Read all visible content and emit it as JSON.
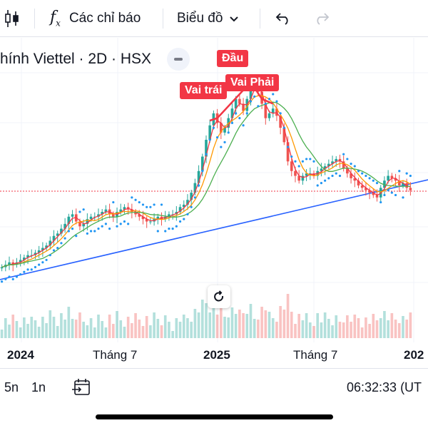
{
  "toolbar": {
    "indicators_label": "Các chỉ báo",
    "chart_type_label": "Biểu đồ",
    "icons": [
      "candles-icon",
      "function-icon",
      "chevron-down-icon",
      "undo-icon",
      "redo-icon"
    ]
  },
  "symbol": {
    "text": "hính Viettel · 2D · HSX"
  },
  "pattern": {
    "head": "Đầu",
    "left_shoulder": "Vai trái",
    "right_shoulder": "Vai Phải",
    "color": "#f23645"
  },
  "time_axis": {
    "labels": [
      "2024",
      "Tháng 7",
      "2025",
      "Tháng 7",
      "202"
    ]
  },
  "bottom_bar": {
    "range_5y": "5n",
    "range_1y": "1n",
    "clock": "06:32:33 (UT"
  },
  "colors": {
    "up": "#26a69a",
    "down": "#ef5350",
    "trendline": "#2962ff",
    "parabolic_sar": "#2196f3",
    "price_line": "#f23645"
  },
  "chart_data": {
    "type": "candlestick",
    "x_range": [
      "2023-12",
      "2026-01"
    ],
    "y_scale_visible": false,
    "close": [
      22,
      23,
      24,
      23,
      24,
      25,
      26,
      27,
      27,
      28,
      29,
      30,
      31,
      33,
      35,
      36,
      38,
      40,
      43,
      44,
      41,
      39,
      40,
      42,
      43,
      43,
      44,
      45,
      46,
      44,
      43,
      45,
      46,
      47,
      46,
      45,
      44,
      43,
      42,
      41,
      41,
      42,
      43,
      42,
      43,
      44,
      44,
      45,
      47,
      48,
      50,
      53,
      57,
      62,
      68,
      75,
      81,
      86,
      82,
      78,
      80,
      84,
      88,
      92,
      90,
      87,
      92,
      97,
      99,
      95,
      90,
      84,
      86,
      88,
      85,
      80,
      74,
      66,
      62,
      60,
      58,
      60,
      61,
      61,
      60,
      62,
      63,
      64,
      65,
      66,
      67,
      66,
      63,
      61,
      59,
      58,
      56,
      55,
      54,
      53,
      52,
      51,
      55,
      58,
      60,
      59,
      58,
      56,
      57,
      55,
      54
    ]
  }
}
